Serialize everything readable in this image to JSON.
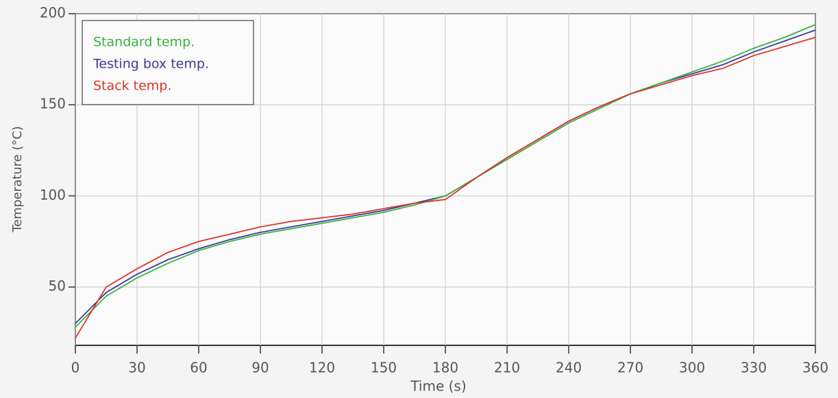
{
  "chart_data": {
    "type": "line",
    "x_label": "Time (s)",
    "y_label": "Temperature (°C)",
    "x": [
      0,
      15,
      30,
      45,
      60,
      75,
      90,
      105,
      120,
      135,
      150,
      165,
      180,
      195,
      210,
      225,
      240,
      255,
      270,
      285,
      300,
      315,
      330,
      345,
      360
    ],
    "series": [
      {
        "name": "Standard temp.",
        "color": "#3cb043",
        "values": [
          28,
          45,
          55,
          63,
          70,
          75,
          79,
          82,
          85,
          88,
          91,
          95,
          100,
          110,
          120,
          130,
          140,
          148,
          156,
          162,
          168,
          174,
          181,
          187,
          194
        ]
      },
      {
        "name": "Testing box temp.",
        "color": "#3a3a9a",
        "values": [
          30,
          47,
          57,
          65,
          71,
          76,
          80,
          83,
          86,
          89,
          92,
          96,
          100,
          110,
          121,
          131,
          141,
          149,
          156,
          162,
          167,
          172,
          179,
          185,
          191
        ]
      },
      {
        "name": "Stack temp.",
        "color": "#d9342b",
        "values": [
          22,
          50,
          60,
          69,
          75,
          79,
          83,
          86,
          88,
          90,
          93,
          96,
          98,
          110,
          121,
          131,
          141,
          149,
          156,
          161,
          166,
          170,
          177,
          182,
          187
        ]
      }
    ],
    "xlim": [
      0,
      360
    ],
    "xticks": [
      0,
      30,
      60,
      90,
      120,
      150,
      180,
      210,
      240,
      270,
      300,
      330,
      360
    ],
    "ylim": [
      18,
      200
    ],
    "yticks": [
      50,
      100,
      150,
      200
    ],
    "grid": true,
    "legend": "upper left"
  }
}
